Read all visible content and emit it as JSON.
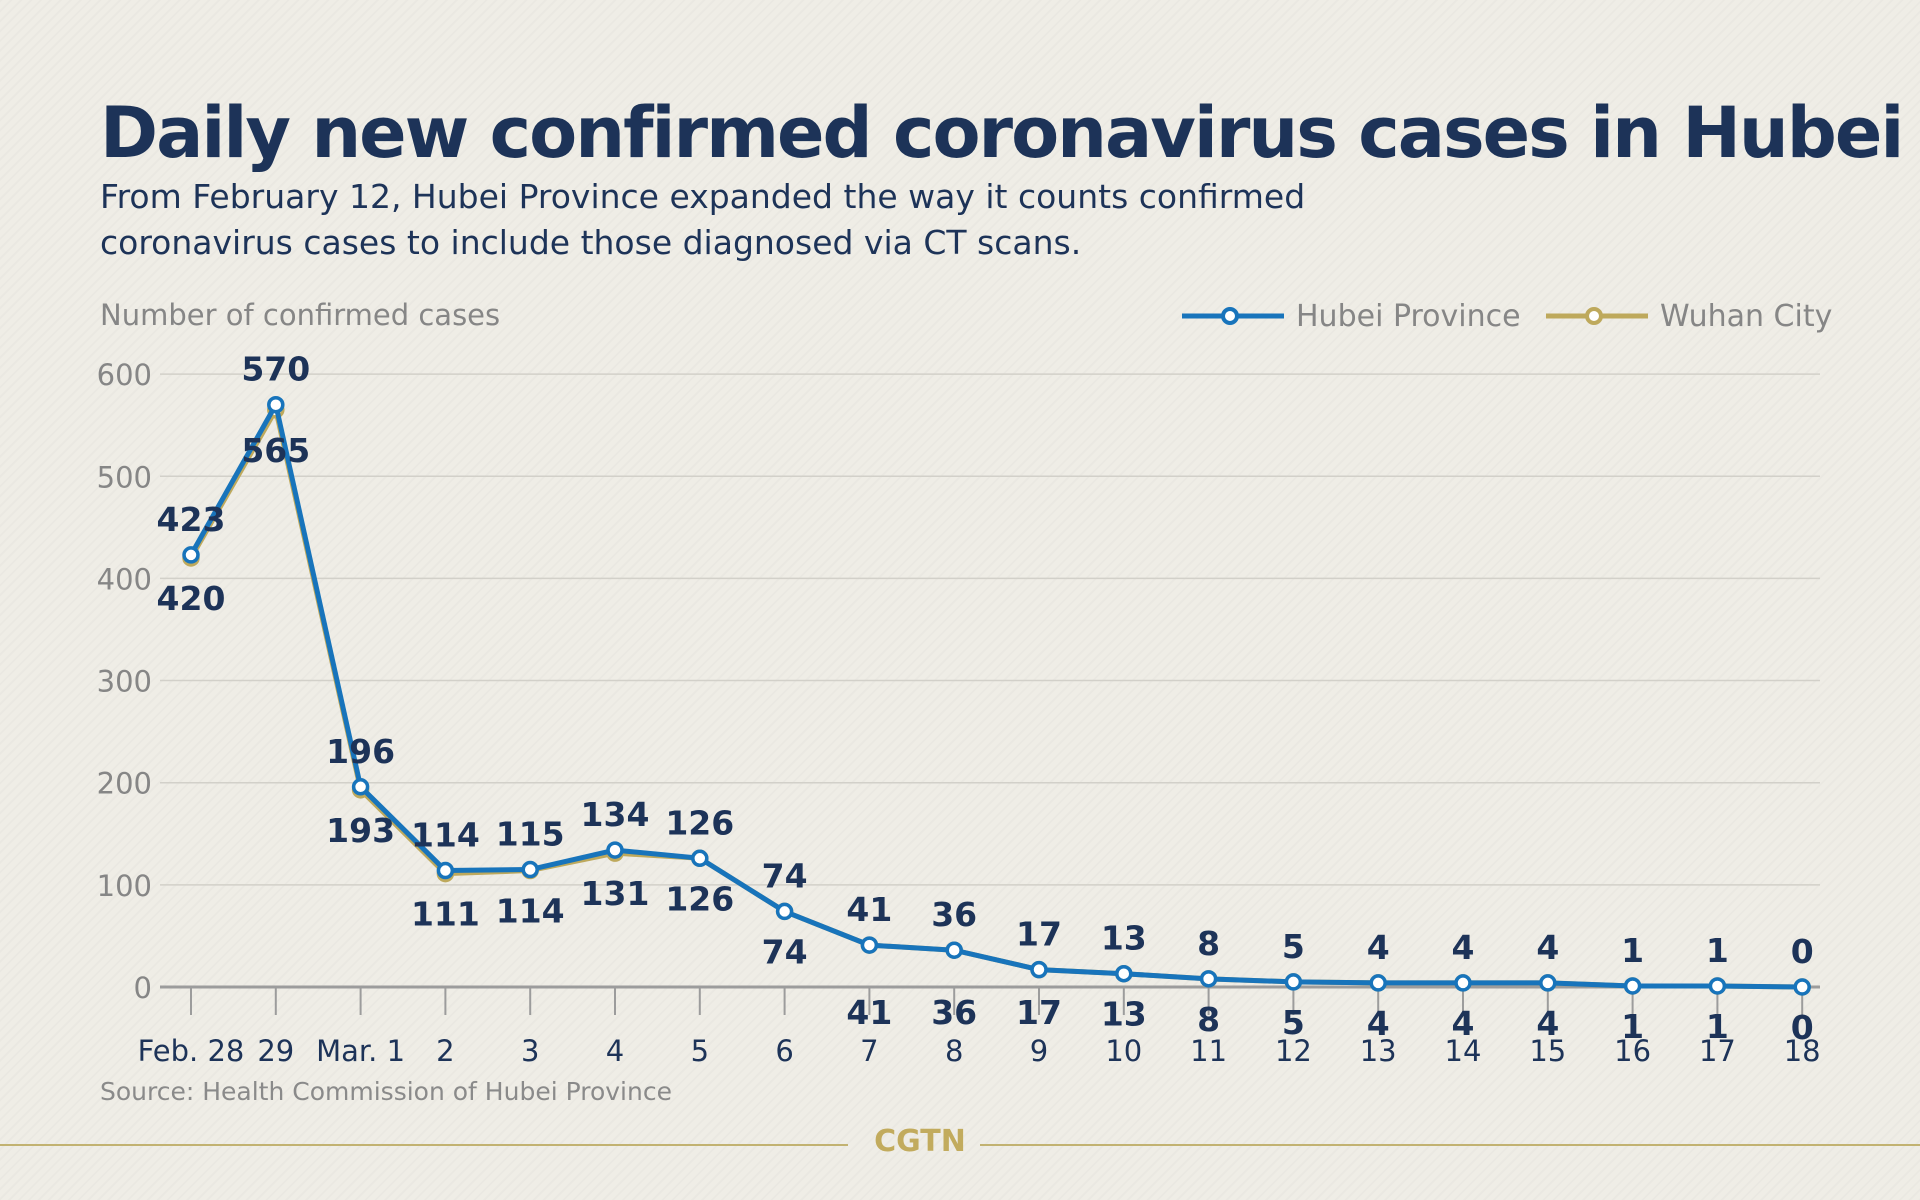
{
  "header": {
    "title": "Daily new confirmed coronavirus cases in Hubei",
    "subtitle_line1": "From February 12, Hubei Province expanded the way it counts confirmed",
    "subtitle_line2": "coronavirus cases to include those diagnosed via CT scans."
  },
  "chart_data": {
    "type": "line",
    "ylabel": "Number of confirmed cases",
    "xlabel": "",
    "categories": [
      "Feb. 28",
      "29",
      "Mar. 1",
      "2",
      "3",
      "4",
      "5",
      "6",
      "7",
      "8",
      "9",
      "10",
      "11",
      "12",
      "13",
      "14",
      "15",
      "16",
      "17",
      "18"
    ],
    "ylim": [
      0,
      600
    ],
    "yticks": [
      0,
      100,
      200,
      300,
      400,
      500,
      600
    ],
    "grid": true,
    "legend_position": "top-right",
    "series": [
      {
        "name": "Hubei Province",
        "color": "#1874bb",
        "values": [
          423,
          570,
          196,
          114,
          115,
          134,
          126,
          74,
          41,
          36,
          17,
          13,
          8,
          5,
          4,
          4,
          4,
          1,
          1,
          0
        ]
      },
      {
        "name": "Wuhan City",
        "color": "#bea95c",
        "values": [
          420,
          565,
          193,
          111,
          114,
          131,
          126,
          74,
          41,
          36,
          17,
          13,
          8,
          5,
          4,
          4,
          4,
          1,
          1,
          0
        ]
      }
    ]
  },
  "footer": {
    "source": "Source: Health Commission of Hubei Province",
    "brand": "CGTN",
    "brand_color": "#c2ab5d"
  }
}
